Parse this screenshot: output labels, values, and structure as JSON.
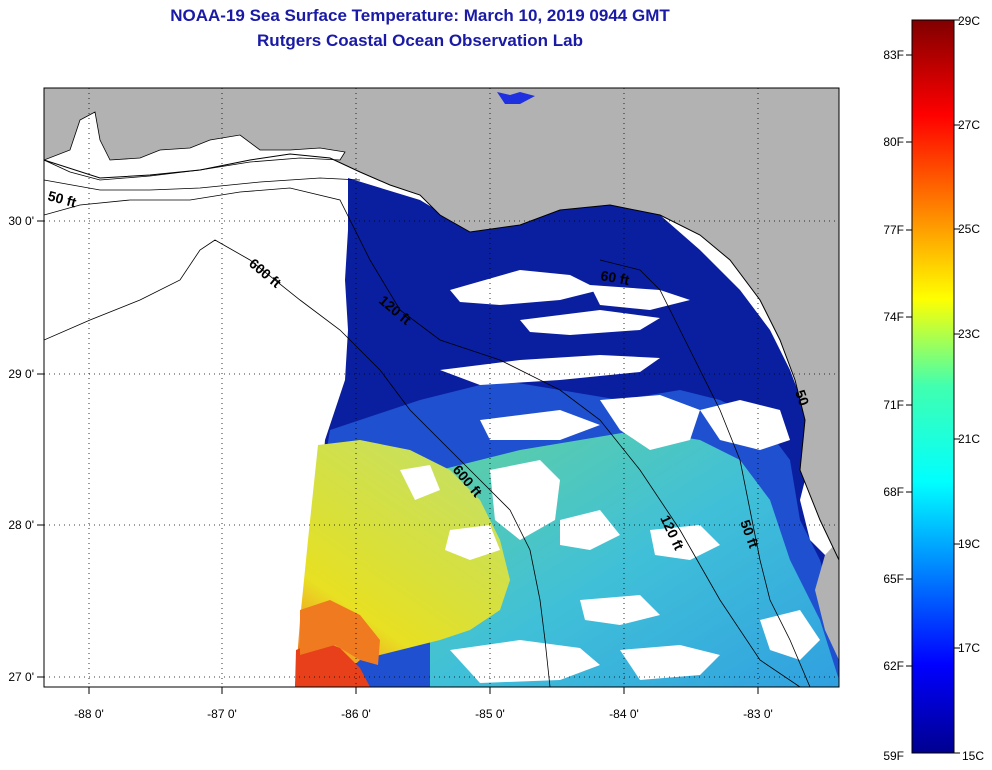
{
  "title": {
    "line1": "NOAA-19 Sea Surface Temperature:  March 10, 2019 0944 GMT",
    "line2": "Rutgers Coastal Ocean Observation Lab"
  },
  "map": {
    "lon_ticks": [
      "-88 0'",
      "-87 0'",
      "-86 0'",
      "-85 0'",
      "-84 0'",
      "-83 0'"
    ],
    "lat_ticks": [
      "30 0'",
      "29 0'",
      "28 0'",
      "27 0'"
    ],
    "contour_labels": [
      "50 ft",
      "600 ft",
      "120 ft",
      "60 ft",
      "600 ft",
      "120 ft",
      "50 ft",
      "50"
    ],
    "colors": {
      "land": "#b2b2b2",
      "no_data": "#ffffff",
      "cold_water": "#0a1ea0",
      "mid_water": "#2aa0e6",
      "warm_water": "#e8e020",
      "hot_water": "#e83a10"
    }
  },
  "colorbar": {
    "fahrenheit_labels": [
      "83F",
      "80F",
      "77F",
      "74F",
      "71F",
      "68F",
      "65F",
      "62F",
      "59F"
    ],
    "celsius_labels": [
      "29C",
      "27C",
      "25C",
      "23C",
      "21C",
      "19C",
      "17C",
      "15C"
    ],
    "range_c": [
      15,
      29
    ],
    "range_f": [
      59,
      84.2
    ]
  }
}
